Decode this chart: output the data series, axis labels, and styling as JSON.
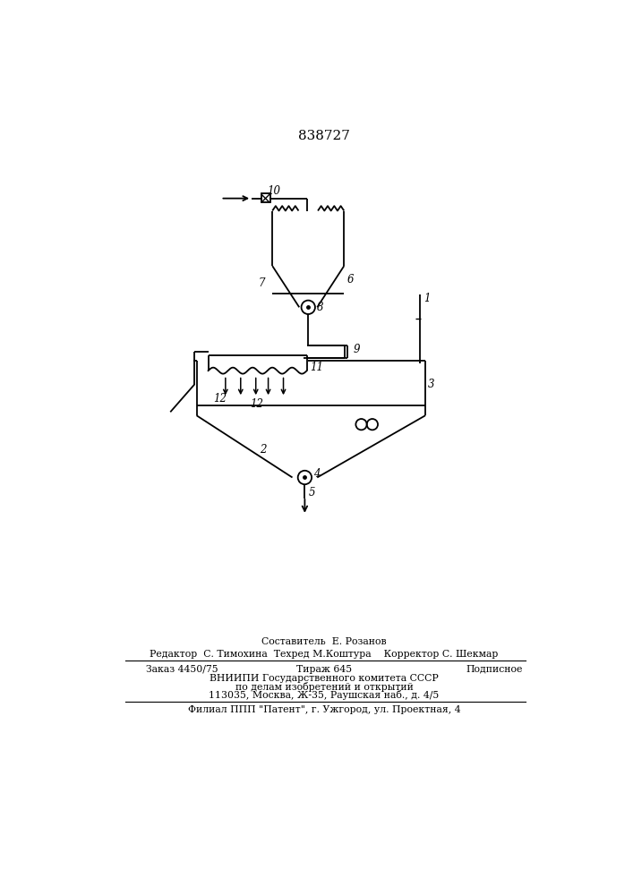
{
  "title": "838727",
  "background_color": "#ffffff",
  "line_color": "#000000",
  "line_width": 1.3,
  "text_color": "#000000",
  "footer_line1": "Составитель  Е. Розанов",
  "footer_line2": "Редактор  С. Тимохина  Техред М.Коштура    Корректор С. Шекмар",
  "footer_line3a": "Заказ 4450/75",
  "footer_line3b": "Тираж 645",
  "footer_line3c": "Подписное",
  "footer_line4": "ВНИИПИ Государственного комитета СССР",
  "footer_line5": "по делам изобретений и открытий",
  "footer_line6": "113035, Москва, Ж-35, Раушская наб., д. 4/5",
  "footer_line7": "Филиал ППП \"Патент\", г. Ужгород, ул. Проектная, 4"
}
